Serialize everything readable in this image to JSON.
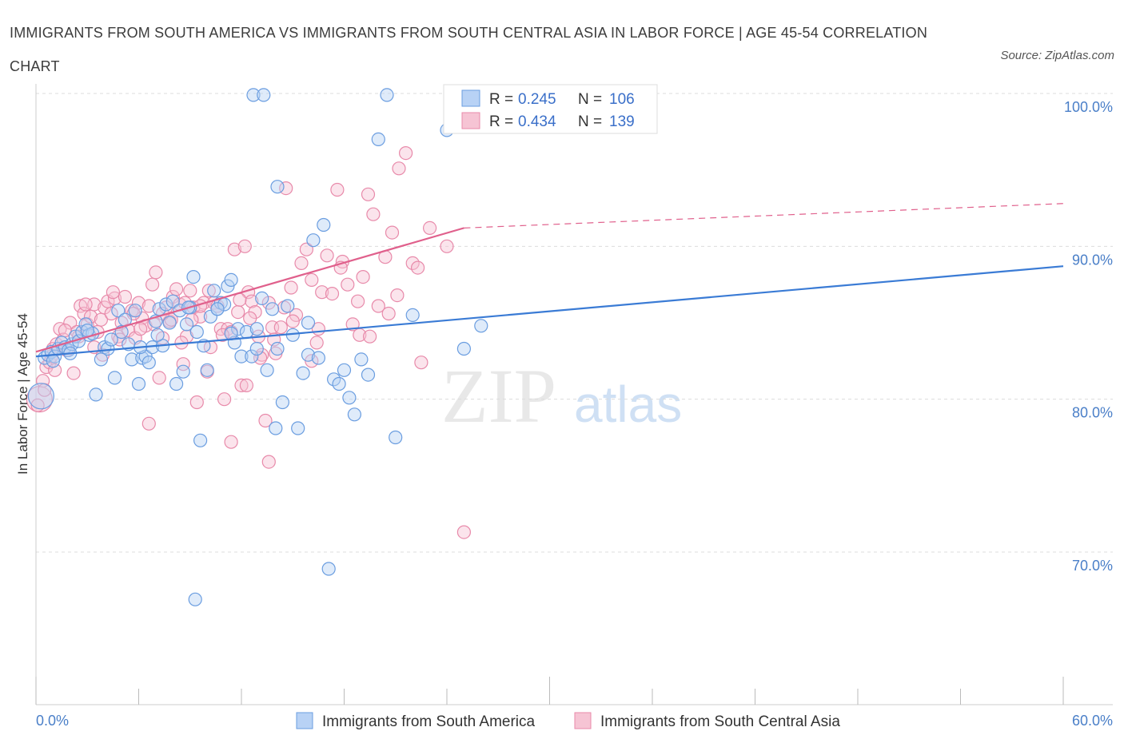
{
  "title": "IMMIGRANTS FROM SOUTH AMERICA VS IMMIGRANTS FROM SOUTH CENTRAL ASIA IN LABOR FORCE | AGE 45-54 CORRELATION CHART",
  "source": "Source: ZipAtlas.com",
  "watermark": {
    "zip": "ZIP",
    "atlas": "atlas"
  },
  "colors": {
    "blue": "#6a9de0",
    "blue_fill": "#b8d2f5",
    "blue_line": "#3a7bd5",
    "pink": "#e88aaa",
    "pink_fill": "#f6c4d4",
    "pink_line": "#e0608c",
    "tick": "#4a7fc8",
    "grid": "#dcdcdc"
  },
  "legend": {
    "rows": [
      {
        "r_label": "R = ",
        "r_value": "0.245",
        "n_label": "N = ",
        "n_value": "106"
      },
      {
        "r_label": "R = ",
        "r_value": "0.434",
        "n_label": "N = ",
        "n_value": "139"
      }
    ]
  },
  "chart_data": {
    "type": "scatter",
    "title": "IMMIGRANTS FROM SOUTH AMERICA VS IMMIGRANTS FROM SOUTH CENTRAL ASIA IN LABOR FORCE | AGE 45-54 CORRELATION CHART",
    "xlabel": "",
    "ylabel": "In Labor Force | Age 45-54",
    "xlim": [
      0,
      60
    ],
    "ylim": [
      62,
      102
    ],
    "x_tick_labels": [
      "0.0%",
      "60.0%"
    ],
    "y_ticks": [
      100,
      90,
      80,
      70
    ],
    "y_tick_labels": [
      "100.0%",
      "90.0%",
      "80.0%",
      "70.0%"
    ],
    "grid": "horizontal dashed",
    "legend_position": "top-center",
    "series": [
      {
        "name": "Immigrants from South America",
        "color": "#6a9de0",
        "R": 0.245,
        "N": 106,
        "trend": {
          "x": [
            0,
            60
          ],
          "y": [
            82.8,
            88.7
          ]
        },
        "points": [
          [
            0.3,
            80.2
          ],
          [
            0.5,
            82.7
          ],
          [
            0.7,
            82.9
          ],
          [
            0.9,
            83.1
          ],
          [
            1.1,
            82.8
          ],
          [
            1.3,
            83.3
          ],
          [
            1.5,
            83.7
          ],
          [
            1.7,
            83.4
          ],
          [
            1.9,
            83.2
          ],
          [
            2.1,
            83.6
          ],
          [
            2.3,
            84.1
          ],
          [
            2.5,
            83.8
          ],
          [
            2.7,
            84.4
          ],
          [
            2.9,
            84.9
          ],
          [
            3.1,
            84.2
          ],
          [
            3.3,
            84.3
          ],
          [
            3.5,
            80.3
          ],
          [
            3.8,
            82.6
          ],
          [
            4.0,
            83.4
          ],
          [
            4.2,
            83.3
          ],
          [
            4.4,
            83.9
          ],
          [
            4.6,
            81.4
          ],
          [
            4.8,
            85.8
          ],
          [
            5.0,
            84.4
          ],
          [
            5.2,
            85.2
          ],
          [
            5.4,
            83.6
          ],
          [
            5.6,
            82.6
          ],
          [
            5.8,
            85.8
          ],
          [
            6.0,
            81.0
          ],
          [
            6.2,
            82.7
          ],
          [
            6.4,
            82.8
          ],
          [
            6.6,
            82.4
          ],
          [
            6.8,
            83.4
          ],
          [
            7.0,
            85.1
          ],
          [
            7.2,
            85.9
          ],
          [
            7.4,
            83.5
          ],
          [
            7.6,
            86.2
          ],
          [
            7.8,
            85.0
          ],
          [
            8.0,
            86.4
          ],
          [
            8.2,
            81.0
          ],
          [
            8.4,
            85.8
          ],
          [
            8.6,
            81.8
          ],
          [
            8.8,
            84.9
          ],
          [
            9.0,
            86.0
          ],
          [
            9.2,
            88.0
          ],
          [
            9.4,
            84.4
          ],
          [
            9.6,
            77.3
          ],
          [
            9.8,
            83.5
          ],
          [
            10.0,
            81.9
          ],
          [
            10.2,
            85.4
          ],
          [
            10.4,
            87.1
          ],
          [
            10.6,
            85.9
          ],
          [
            10.8,
            86.3
          ],
          [
            11.0,
            86.2
          ],
          [
            11.2,
            87.4
          ],
          [
            11.4,
            87.8
          ],
          [
            11.6,
            83.7
          ],
          [
            11.8,
            84.6
          ],
          [
            12.0,
            82.8
          ],
          [
            12.3,
            84.4
          ],
          [
            12.6,
            82.8
          ],
          [
            12.9,
            83.3
          ],
          [
            13.2,
            86.6
          ],
          [
            13.5,
            81.9
          ],
          [
            13.8,
            85.9
          ],
          [
            14.1,
            83.3
          ],
          [
            14.4,
            79.8
          ],
          [
            14.7,
            86.1
          ],
          [
            15.0,
            84.2
          ],
          [
            15.3,
            78.1
          ],
          [
            15.6,
            81.7
          ],
          [
            15.9,
            82.9
          ],
          [
            16.2,
            90.4
          ],
          [
            16.5,
            82.7
          ],
          [
            16.8,
            91.4
          ],
          [
            17.1,
            68.9
          ],
          [
            17.4,
            81.3
          ],
          [
            17.7,
            81.0
          ],
          [
            18.0,
            81.9
          ],
          [
            18.3,
            80.1
          ],
          [
            18.6,
            79.0
          ],
          [
            19.0,
            82.6
          ],
          [
            19.4,
            81.6
          ],
          [
            20.0,
            97.0
          ],
          [
            21.0,
            77.5
          ],
          [
            22.0,
            85.5
          ],
          [
            24.0,
            97.6
          ],
          [
            25.0,
            83.3
          ],
          [
            26.0,
            84.8
          ],
          [
            14.1,
            93.9
          ],
          [
            12.7,
            99.9
          ],
          [
            13.3,
            99.9
          ],
          [
            20.5,
            99.9
          ],
          [
            28.7,
            99.9
          ],
          [
            14.0,
            78.1
          ],
          [
            9.3,
            66.9
          ],
          [
            7.1,
            84.2
          ],
          [
            10.6,
            85.9
          ],
          [
            3.0,
            84.5
          ],
          [
            11.4,
            84.3
          ],
          [
            12.9,
            84.6
          ],
          [
            15.9,
            85.0
          ],
          [
            1.0,
            82.5
          ],
          [
            2.0,
            83.0
          ],
          [
            6.1,
            83.4
          ],
          [
            8.9,
            86.0
          ]
        ]
      },
      {
        "name": "Immigrants from South Central Asia",
        "color": "#e88aaa",
        "R": 0.434,
        "N": 139,
        "trend": {
          "x": [
            0,
            25
          ],
          "y": [
            83.1,
            91.2
          ]
        },
        "trend_dashed": {
          "x": [
            25,
            60
          ],
          "y": [
            91.2,
            92.8
          ]
        },
        "points": [
          [
            0.2,
            80.0
          ],
          [
            0.4,
            81.2
          ],
          [
            0.6,
            82.1
          ],
          [
            0.8,
            82.4
          ],
          [
            1.0,
            83.3
          ],
          [
            1.2,
            83.6
          ],
          [
            1.4,
            84.6
          ],
          [
            1.6,
            83.9
          ],
          [
            1.8,
            83.2
          ],
          [
            2.0,
            85.0
          ],
          [
            2.2,
            81.7
          ],
          [
            2.4,
            84.4
          ],
          [
            2.6,
            86.1
          ],
          [
            2.8,
            85.6
          ],
          [
            3.0,
            84.9
          ],
          [
            3.2,
            85.4
          ],
          [
            3.4,
            86.2
          ],
          [
            3.6,
            84.4
          ],
          [
            3.8,
            85.2
          ],
          [
            4.0,
            86.0
          ],
          [
            4.2,
            86.4
          ],
          [
            4.4,
            85.6
          ],
          [
            4.6,
            86.6
          ],
          [
            4.8,
            84.1
          ],
          [
            5.0,
            85.0
          ],
          [
            5.2,
            86.7
          ],
          [
            5.4,
            84.5
          ],
          [
            5.6,
            85.8
          ],
          [
            5.8,
            84.0
          ],
          [
            6.0,
            86.3
          ],
          [
            6.2,
            85.3
          ],
          [
            6.4,
            84.8
          ],
          [
            6.6,
            86.1
          ],
          [
            6.8,
            87.5
          ],
          [
            7.0,
            88.3
          ],
          [
            7.2,
            81.4
          ],
          [
            7.4,
            84.0
          ],
          [
            7.6,
            86.0
          ],
          [
            7.8,
            85.1
          ],
          [
            8.0,
            86.7
          ],
          [
            8.2,
            87.2
          ],
          [
            8.4,
            86.2
          ],
          [
            8.6,
            82.3
          ],
          [
            8.8,
            84.1
          ],
          [
            9.0,
            87.1
          ],
          [
            9.2,
            86.0
          ],
          [
            9.4,
            79.8
          ],
          [
            9.6,
            85.4
          ],
          [
            9.8,
            86.3
          ],
          [
            10.0,
            81.8
          ],
          [
            10.2,
            83.4
          ],
          [
            10.4,
            86.3
          ],
          [
            10.6,
            86.1
          ],
          [
            10.8,
            84.6
          ],
          [
            11.0,
            80.0
          ],
          [
            11.2,
            84.6
          ],
          [
            11.4,
            84.4
          ],
          [
            11.6,
            89.8
          ],
          [
            11.8,
            85.7
          ],
          [
            12.0,
            80.9
          ],
          [
            12.2,
            90.0
          ],
          [
            12.4,
            87.0
          ],
          [
            12.6,
            86.4
          ],
          [
            12.8,
            85.7
          ],
          [
            13.0,
            84.1
          ],
          [
            13.2,
            82.9
          ],
          [
            13.4,
            78.6
          ],
          [
            13.6,
            86.3
          ],
          [
            13.8,
            84.7
          ],
          [
            14.0,
            83.0
          ],
          [
            14.3,
            84.7
          ],
          [
            14.6,
            93.8
          ],
          [
            14.9,
            87.3
          ],
          [
            15.2,
            85.5
          ],
          [
            15.5,
            88.9
          ],
          [
            15.8,
            89.8
          ],
          [
            16.1,
            82.5
          ],
          [
            16.4,
            83.7
          ],
          [
            16.7,
            87.0
          ],
          [
            17.0,
            89.4
          ],
          [
            17.3,
            86.9
          ],
          [
            17.6,
            93.7
          ],
          [
            17.9,
            89.0
          ],
          [
            18.2,
            87.5
          ],
          [
            18.5,
            84.9
          ],
          [
            18.8,
            86.4
          ],
          [
            19.1,
            88.0
          ],
          [
            19.4,
            93.4
          ],
          [
            19.7,
            92.1
          ],
          [
            20.0,
            86.1
          ],
          [
            20.4,
            89.3
          ],
          [
            20.8,
            90.9
          ],
          [
            21.2,
            95.1
          ],
          [
            21.6,
            96.1
          ],
          [
            22.0,
            88.9
          ],
          [
            22.5,
            82.4
          ],
          [
            23.0,
            91.2
          ],
          [
            24.0,
            90.0
          ],
          [
            25.0,
            71.3
          ],
          [
            22.3,
            88.6
          ],
          [
            13.6,
            75.9
          ],
          [
            11.4,
            77.2
          ],
          [
            12.3,
            80.9
          ],
          [
            6.6,
            78.4
          ],
          [
            9.6,
            86.1
          ],
          [
            3.4,
            83.4
          ],
          [
            1.7,
            84.5
          ],
          [
            0.9,
            82.8
          ],
          [
            16.1,
            87.8
          ],
          [
            17.8,
            88.6
          ],
          [
            7.9,
            85.2
          ],
          [
            10.9,
            84.2
          ],
          [
            14.5,
            86.0
          ],
          [
            5.7,
            85.6
          ],
          [
            4.5,
            87.0
          ],
          [
            2.9,
            86.2
          ],
          [
            6.1,
            84.6
          ],
          [
            8.5,
            83.7
          ],
          [
            9.1,
            85.2
          ],
          [
            11.9,
            86.5
          ],
          [
            13.1,
            82.7
          ],
          [
            15.0,
            85.1
          ],
          [
            18.9,
            84.2
          ],
          [
            20.6,
            85.6
          ],
          [
            1.1,
            81.9
          ],
          [
            0.5,
            80.6
          ],
          [
            2.5,
            84.1
          ],
          [
            3.9,
            82.9
          ],
          [
            4.9,
            83.9
          ],
          [
            6.9,
            84.9
          ],
          [
            7.4,
            85.6
          ],
          [
            8.7,
            86.3
          ],
          [
            10.1,
            87.1
          ],
          [
            12.5,
            85.3
          ],
          [
            13.9,
            83.9
          ],
          [
            16.5,
            84.6
          ],
          [
            19.5,
            84.1
          ],
          [
            21.1,
            86.8
          ],
          [
            0.1,
            79.6
          ]
        ]
      }
    ]
  },
  "bottom_legend": {
    "items": [
      {
        "label": "Immigrants from South America"
      },
      {
        "label": "Immigrants from South Central Asia"
      }
    ]
  }
}
